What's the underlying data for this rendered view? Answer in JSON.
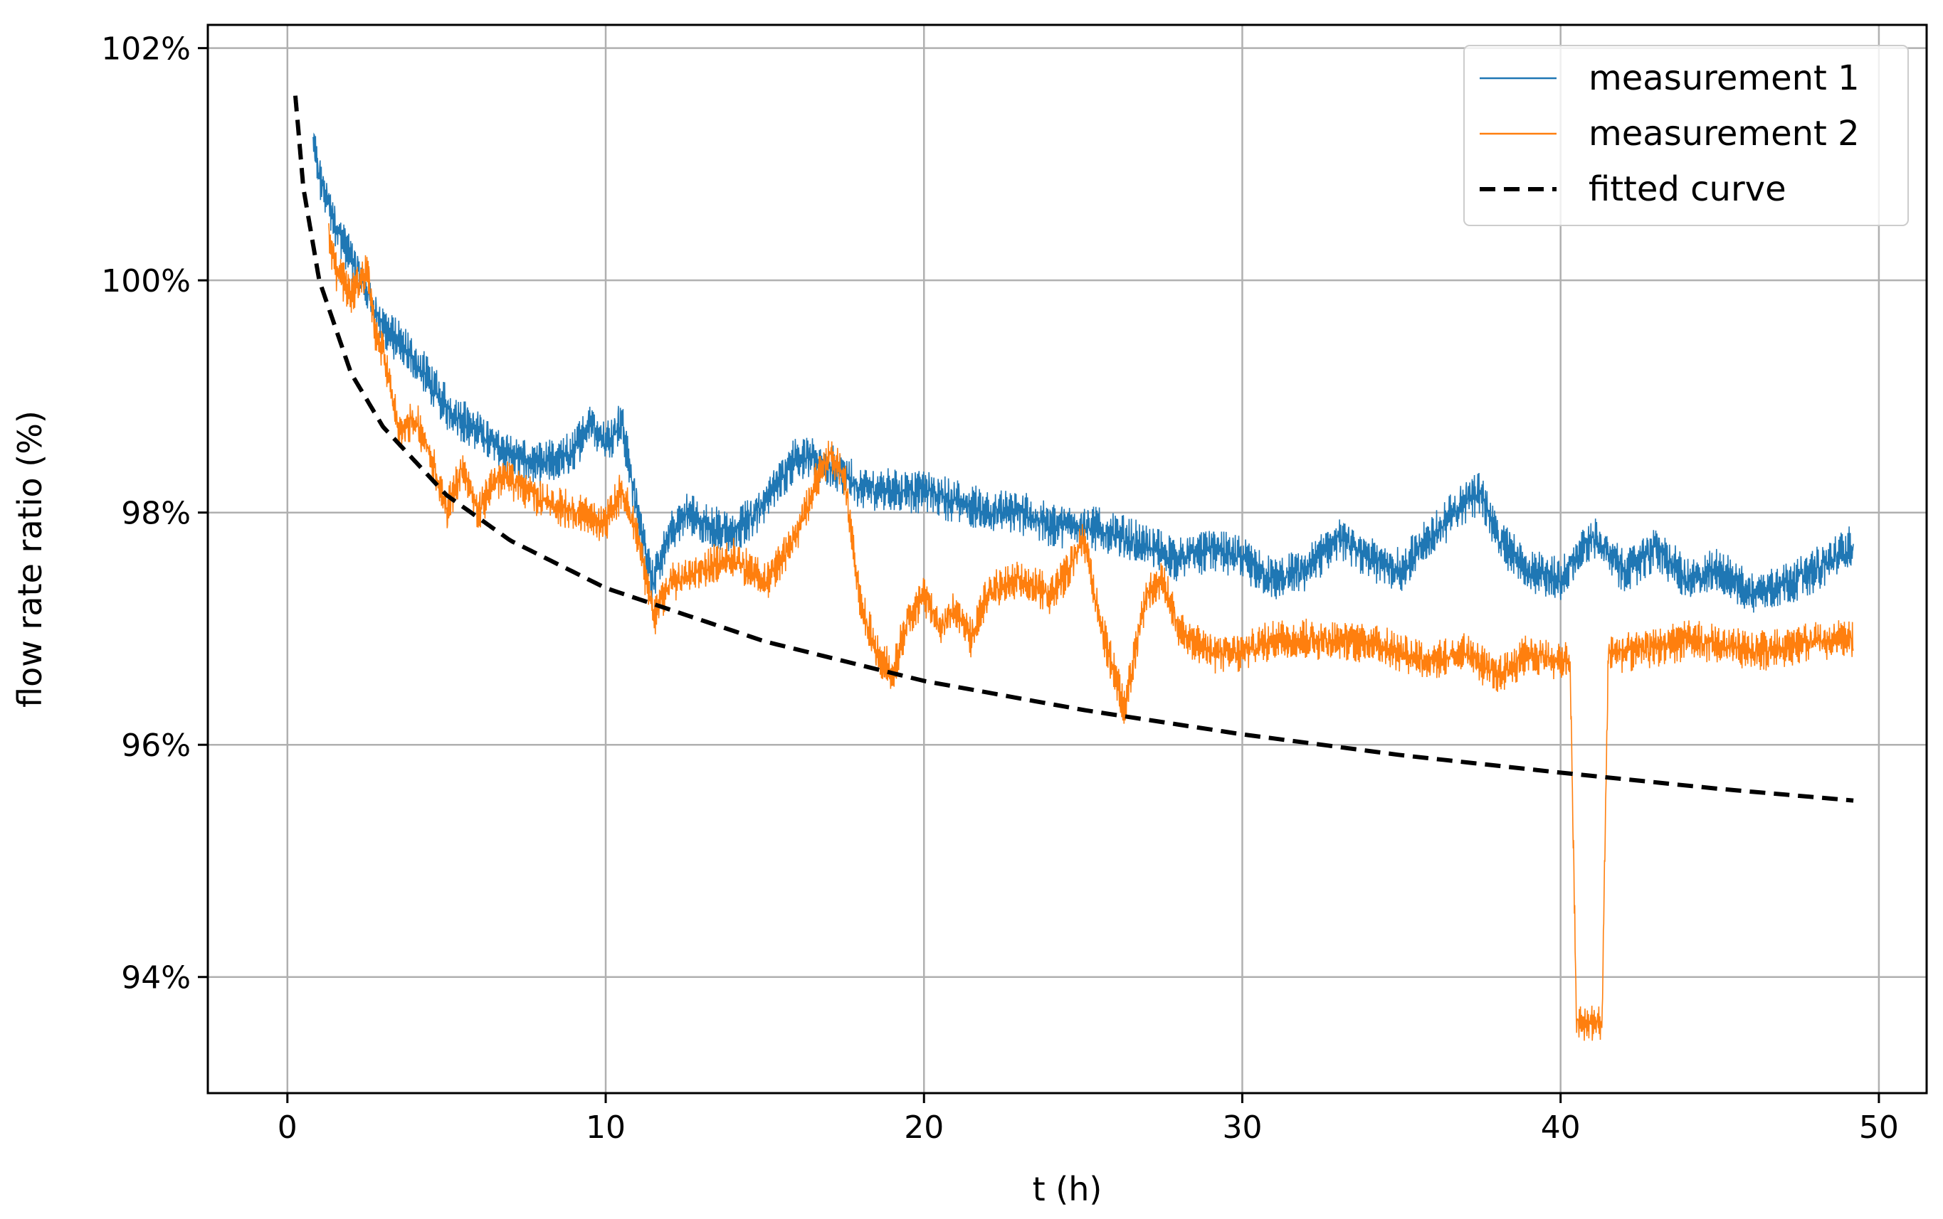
{
  "chart_data": {
    "type": "line",
    "title": "",
    "xlabel": "t (h)",
    "ylabel": "flow rate ratio (%)",
    "xlim": [
      -2.5,
      51.5
    ],
    "ylim": [
      93.0,
      102.2
    ],
    "x_ticks": [
      0,
      10,
      20,
      30,
      40,
      50
    ],
    "x_tick_labels": [
      "0",
      "10",
      "20",
      "30",
      "40",
      "50"
    ],
    "y_ticks": [
      94,
      96,
      98,
      100,
      102
    ],
    "y_tick_labels": [
      "94%",
      "96%",
      "98%",
      "100%",
      "102%"
    ],
    "grid": true,
    "legend_position": "top-right",
    "series": [
      {
        "name": "measurement 1",
        "color": "#1f77b4",
        "style": "solid",
        "noise_amplitude": 0.22,
        "x": [
          0.8,
          1.0,
          1.5,
          2.0,
          2.5,
          3.0,
          4.0,
          5.0,
          6.0,
          7.0,
          8.0,
          9.0,
          9.5,
          10.0,
          10.5,
          11.0,
          11.5,
          12.0,
          12.5,
          13.0,
          14.0,
          15.0,
          16.0,
          17.0,
          18.0,
          19.0,
          20.0,
          21.0,
          22.0,
          23.0,
          24.0,
          25.0,
          26.0,
          27.0,
          28.0,
          29.0,
          30.0,
          31.0,
          32.0,
          33.0,
          34.0,
          35.0,
          36.0,
          37.0,
          37.5,
          38.0,
          39.0,
          40.0,
          41.0,
          42.0,
          43.0,
          44.0,
          45.0,
          46.0,
          47.0,
          48.0,
          49.2
        ],
        "values": [
          101.2,
          100.9,
          100.5,
          100.2,
          99.9,
          99.6,
          99.3,
          98.9,
          98.7,
          98.5,
          98.4,
          98.5,
          98.8,
          98.6,
          98.8,
          98.0,
          97.4,
          97.8,
          98.0,
          97.9,
          97.8,
          98.1,
          98.5,
          98.4,
          98.2,
          98.2,
          98.2,
          98.1,
          98.0,
          98.0,
          97.9,
          97.9,
          97.8,
          97.7,
          97.6,
          97.7,
          97.6,
          97.4,
          97.5,
          97.8,
          97.6,
          97.5,
          97.8,
          98.1,
          98.2,
          97.8,
          97.5,
          97.4,
          97.8,
          97.5,
          97.7,
          97.4,
          97.5,
          97.3,
          97.4,
          97.5,
          97.7
        ]
      },
      {
        "name": "measurement 2",
        "color": "#ff7f0e",
        "style": "solid",
        "noise_amplitude": 0.2,
        "x": [
          1.3,
          1.5,
          2.0,
          2.5,
          2.8,
          3.0,
          3.5,
          4.0,
          4.5,
          5.0,
          5.5,
          6.0,
          6.5,
          7.0,
          8.0,
          9.0,
          10.0,
          10.5,
          11.0,
          11.5,
          12.0,
          13.0,
          14.0,
          15.0,
          16.0,
          16.5,
          17.0,
          17.5,
          18.0,
          18.5,
          19.0,
          19.5,
          20.0,
          20.5,
          21.0,
          21.5,
          22.0,
          23.0,
          24.0,
          24.5,
          25.0,
          25.5,
          26.0,
          26.3,
          27.0,
          27.5,
          28.0,
          29.0,
          30.0,
          31.0,
          32.0,
          33.0,
          34.0,
          35.0,
          36.0,
          37.0,
          38.0,
          39.0,
          40.0,
          40.3,
          40.5,
          41.0,
          41.3,
          41.5,
          42.0,
          44.0,
          46.0,
          48.0,
          49.2
        ],
        "values": [
          100.4,
          100.1,
          99.9,
          100.1,
          99.5,
          99.4,
          98.7,
          98.8,
          98.5,
          98.0,
          98.4,
          98.0,
          98.3,
          98.3,
          98.1,
          98.0,
          97.9,
          98.2,
          97.8,
          97.1,
          97.4,
          97.5,
          97.6,
          97.4,
          97.8,
          98.2,
          98.5,
          98.3,
          97.2,
          96.8,
          96.6,
          97.1,
          97.3,
          97.0,
          97.2,
          96.9,
          97.3,
          97.4,
          97.3,
          97.5,
          97.8,
          97.1,
          96.6,
          96.3,
          97.3,
          97.4,
          97.0,
          96.8,
          96.8,
          96.9,
          96.9,
          96.9,
          96.9,
          96.8,
          96.7,
          96.8,
          96.6,
          96.8,
          96.7,
          96.7,
          93.6,
          93.6,
          93.6,
          96.8,
          96.8,
          96.9,
          96.8,
          96.9,
          96.9
        ]
      },
      {
        "name": "fitted curve",
        "color": "#000000",
        "style": "dashed",
        "formula": "ratio = 100.0 - 1.15 * ln(t)",
        "x": [
          0.25,
          0.5,
          1.0,
          2.0,
          3.0,
          5.0,
          7.0,
          10.0,
          15.0,
          20.0,
          25.0,
          30.0,
          35.0,
          40.0,
          45.0,
          49.2
        ],
        "values": [
          101.59,
          100.8,
          100.0,
          99.2,
          98.74,
          98.15,
          97.76,
          97.35,
          96.89,
          96.55,
          96.3,
          96.09,
          95.91,
          95.76,
          95.62,
          95.52
        ]
      }
    ]
  }
}
